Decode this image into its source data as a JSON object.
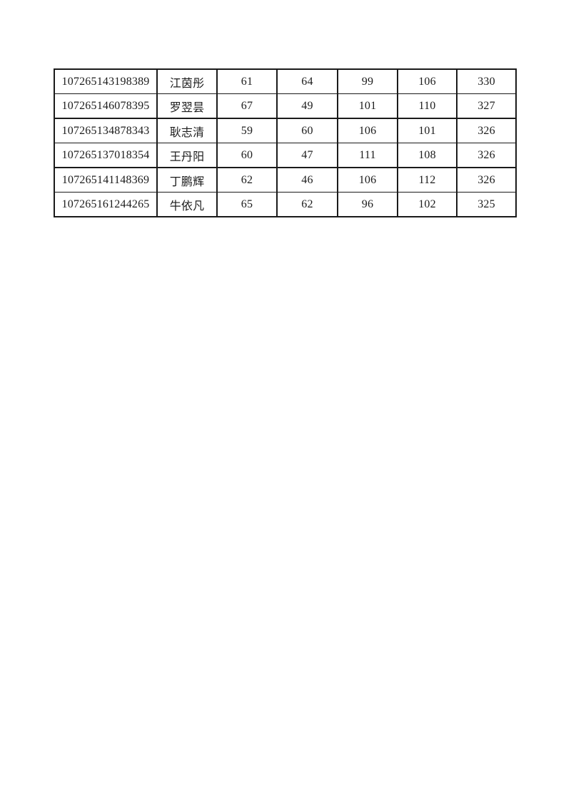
{
  "page": {
    "background": "#ffffff",
    "border_color": "#1a1a1a",
    "text_color": "#1c1c1c"
  },
  "table": {
    "column_semantics": [
      "candidate-id-cell",
      "candidate-name-cell",
      "score-1-cell",
      "score-2-cell",
      "score-3-cell",
      "score-4-cell",
      "total-score-cell"
    ],
    "rows": [
      {
        "cells": [
          "107265143198389",
          "江茵彤",
          "61",
          "64",
          "99",
          "106",
          "330"
        ]
      },
      {
        "cells": [
          "107265146078395",
          "罗翌昙",
          "67",
          "49",
          "101",
          "110",
          "327"
        ]
      },
      {
        "cells": [
          "107265134878343",
          "耿志清",
          "59",
          "60",
          "106",
          "101",
          "326"
        ]
      },
      {
        "cells": [
          "107265137018354",
          "王丹阳",
          "60",
          "47",
          "111",
          "108",
          "326"
        ]
      },
      {
        "cells": [
          "107265141148369",
          "丁鹏辉",
          "62",
          "46",
          "106",
          "112",
          "326"
        ]
      },
      {
        "cells": [
          "107265161244265",
          "牛依凡",
          "65",
          "62",
          "96",
          "102",
          "325"
        ]
      }
    ]
  }
}
